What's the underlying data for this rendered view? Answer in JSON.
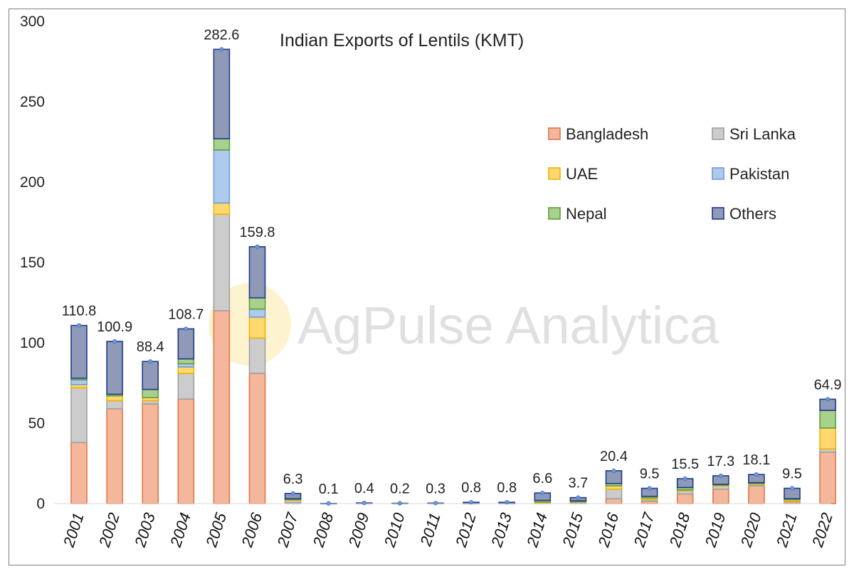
{
  "chart_data": {
    "type": "bar",
    "stacked": true,
    "title": "Indian Exports of Lentils (KMT)",
    "watermark": "AgPulse Analytica",
    "xlabel": "",
    "ylabel": "",
    "ylim": [
      0,
      300
    ],
    "yticks": [
      0,
      50,
      100,
      150,
      200,
      250,
      300
    ],
    "grid": false,
    "legend_position": "right",
    "categories": [
      "2001",
      "2002",
      "2003",
      "2004",
      "2005",
      "2006",
      "2007",
      "2008",
      "2009",
      "2010",
      "2011",
      "2012",
      "2013",
      "2014",
      "2015",
      "2016",
      "2017",
      "2018",
      "2019",
      "2020",
      "2021",
      "2022"
    ],
    "totals": [
      110.8,
      100.9,
      88.4,
      108.7,
      282.6,
      159.8,
      6.3,
      0.1,
      0.4,
      0.2,
      0.3,
      0.8,
      0.8,
      6.6,
      3.7,
      20.4,
      9.5,
      15.5,
      17.3,
      18.1,
      9.5,
      64.9
    ],
    "total_labels": [
      "110.8",
      "100.9",
      "88.4",
      "108.7",
      "282.6",
      "159.8",
      "6.3",
      "0.1",
      "0.4",
      "0.2",
      "0.3",
      "0.8",
      "0.8",
      "6.6",
      "3.7",
      "20.4",
      "9.5",
      "15.5",
      "17.3",
      "18.1",
      "9.5",
      "64.9"
    ],
    "series": [
      {
        "name": "Bangladesh",
        "color": "#f4b79b",
        "edge": "#e0784a",
        "values": [
          38,
          59,
          62,
          65,
          120,
          81,
          0.5,
          0,
          0,
          0,
          0,
          0,
          0,
          0.5,
          0.5,
          3,
          1.5,
          6,
          9,
          11,
          1,
          32
        ]
      },
      {
        "name": "Sri Lanka",
        "color": "#cccccc",
        "edge": "#a0a0a0",
        "values": [
          34,
          5,
          2,
          16,
          60,
          22,
          1.5,
          0,
          0,
          0,
          0,
          0,
          0,
          0,
          0.5,
          6,
          1,
          2,
          2,
          1,
          0.5,
          2
        ]
      },
      {
        "name": "UAE",
        "color": "#ffd970",
        "edge": "#f2b100",
        "values": [
          2,
          3,
          2,
          4,
          7,
          13,
          0.5,
          0,
          0,
          0,
          0,
          0,
          0,
          0.5,
          0.2,
          2,
          1,
          0.5,
          0.5,
          0.5,
          1,
          13
        ]
      },
      {
        "name": "Pakistan",
        "color": "#aecbee",
        "edge": "#6e9ad6",
        "values": [
          3,
          0,
          0,
          2,
          33,
          5,
          0,
          0,
          0,
          0,
          0,
          0,
          0,
          0,
          0,
          0,
          0,
          0,
          0,
          0,
          0,
          0
        ]
      },
      {
        "name": "Nepal",
        "color": "#a9d18e",
        "edge": "#5e9e3a",
        "values": [
          1,
          1,
          5,
          3,
          7,
          7,
          0.5,
          0,
          0,
          0,
          0,
          0,
          0,
          1,
          0.5,
          1.5,
          1,
          1.5,
          0.5,
          0.5,
          0.5,
          11
        ]
      },
      {
        "name": "Others",
        "color": "#8f9ab8",
        "edge": "#1f3a8a",
        "values": [
          32.8,
          32.9,
          17.4,
          18.7,
          55.6,
          31.8,
          3.3,
          0.1,
          0.4,
          0.2,
          0.3,
          0.8,
          0.8,
          4.6,
          2,
          7.9,
          5,
          5.5,
          5.3,
          5.1,
          6.5,
          6.9
        ]
      }
    ]
  }
}
